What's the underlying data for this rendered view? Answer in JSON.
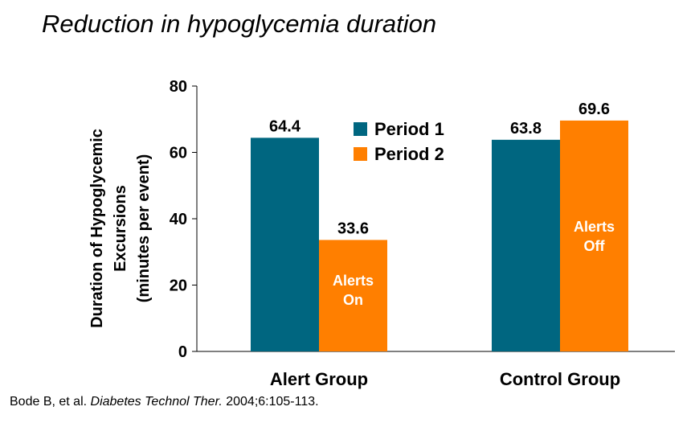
{
  "title": "Reduction in hypoglycemia duration",
  "citation": {
    "authors": "Bode B, et al.",
    "journal": "Diabetes Technol Ther.",
    "details": "2004;6:105-113."
  },
  "colors": {
    "period1": "#006680",
    "period2": "#ff7f00",
    "axis": "#000000",
    "label_inside": "#ffffff"
  },
  "chart_data": {
    "type": "bar",
    "categories": [
      "Alert Group",
      "Control Group"
    ],
    "series": [
      {
        "name": "Period 1",
        "values": [
          64.4,
          63.8
        ],
        "data_labels": [
          "64.4",
          "63.8"
        ],
        "inner_labels": [
          [
            "",
            ""
          ],
          [
            "",
            ""
          ]
        ]
      },
      {
        "name": "Period 2",
        "values": [
          33.6,
          69.6
        ],
        "data_labels": [
          "33.6",
          "69.6"
        ],
        "inner_labels": [
          [
            "Alerts",
            "On"
          ],
          [
            "Alerts",
            "Off"
          ]
        ]
      }
    ],
    "ylabel": [
      "Duration of Hypoglycemic",
      "Excursions",
      "(minutes per event)"
    ],
    "xlabel": "",
    "ylim": [
      0,
      80
    ],
    "yticks": [
      0,
      20,
      40,
      60,
      80
    ],
    "grid": false,
    "legend_position": "top-center"
  }
}
